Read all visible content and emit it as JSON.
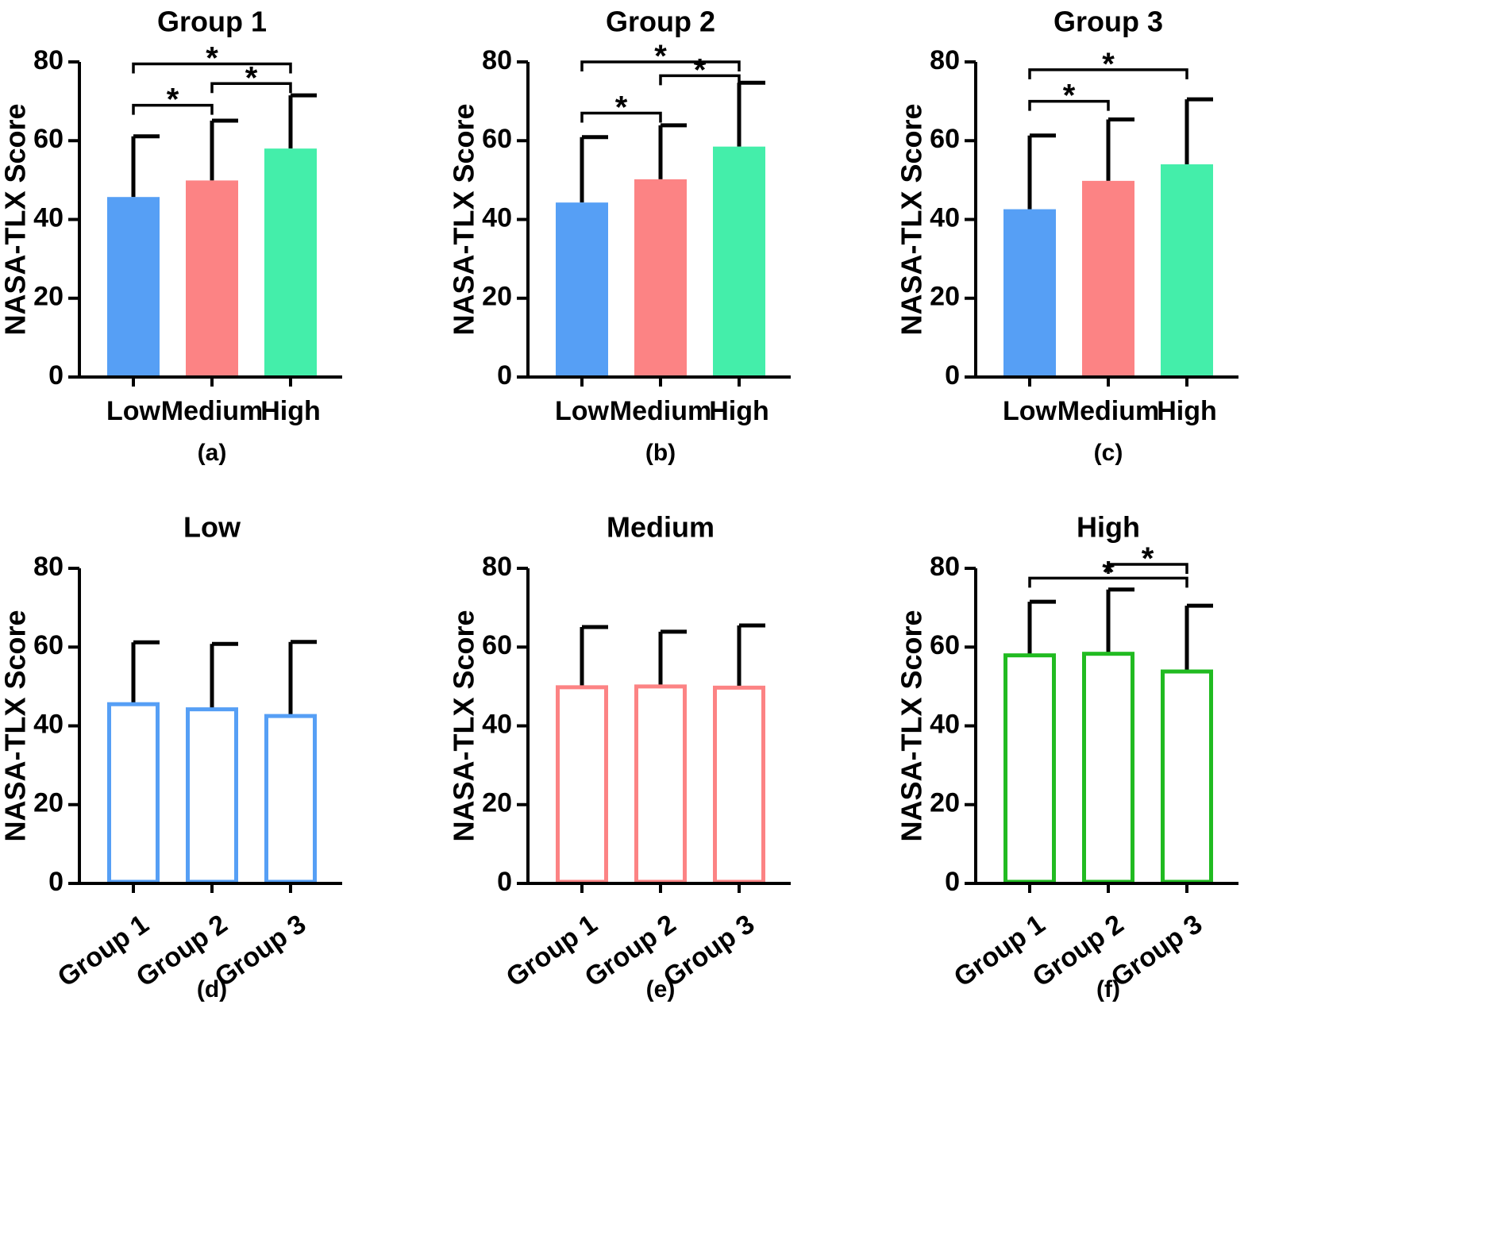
{
  "figure": {
    "colors": {
      "low": "#569ff5",
      "medium": "#fc8384",
      "high": "#44eeaa",
      "high_outline": "#21bb21",
      "axis": "#000000"
    }
  },
  "chart_data": [
    {
      "type": "bar",
      "panel_label": "(a)",
      "title": "Group 1",
      "xlabel": "",
      "ylabel": "NASA-TLX Score",
      "ylim": [
        0,
        80
      ],
      "yticks": [
        0,
        20,
        40,
        60,
        80
      ],
      "categories": [
        "Low",
        "Medium",
        "High"
      ],
      "values": [
        45.7,
        49.9,
        58.0
      ],
      "errors": [
        15.4,
        15.2,
        13.5
      ],
      "bar_style": "filled",
      "colors": [
        "#569ff5",
        "#fc8384",
        "#44eeaa"
      ],
      "tick_rotation": 0,
      "significance": [
        {
          "from": 0,
          "to": 2,
          "y": 79.5,
          "label": "*"
        },
        {
          "from": 1,
          "to": 2,
          "y": 74.5,
          "label": "*"
        },
        {
          "from": 0,
          "to": 1,
          "y": 69,
          "label": "*"
        }
      ]
    },
    {
      "type": "bar",
      "panel_label": "(b)",
      "title": "Group 2",
      "xlabel": "",
      "ylabel": "NASA-TLX Score",
      "ylim": [
        0,
        80
      ],
      "yticks": [
        0,
        20,
        40,
        60,
        80
      ],
      "categories": [
        "Low",
        "Medium",
        "High"
      ],
      "values": [
        44.3,
        50.2,
        58.5
      ],
      "errors": [
        16.6,
        13.7,
        16.2
      ],
      "bar_style": "filled",
      "colors": [
        "#569ff5",
        "#fc8384",
        "#44eeaa"
      ],
      "tick_rotation": 0,
      "significance": [
        {
          "from": 0,
          "to": 2,
          "y": 80,
          "label": "*"
        },
        {
          "from": 1,
          "to": 2,
          "y": 76.5,
          "label": "*"
        },
        {
          "from": 0,
          "to": 1,
          "y": 67,
          "label": "*"
        }
      ]
    },
    {
      "type": "bar",
      "panel_label": "(c)",
      "title": "Group 3",
      "xlabel": "",
      "ylabel": "NASA-TLX Score",
      "ylim": [
        0,
        80
      ],
      "yticks": [
        0,
        20,
        40,
        60,
        80
      ],
      "categories": [
        "Low",
        "Medium",
        "High"
      ],
      "values": [
        42.6,
        49.8,
        54.0
      ],
      "errors": [
        18.7,
        15.6,
        16.5
      ],
      "bar_style": "filled",
      "colors": [
        "#569ff5",
        "#fc8384",
        "#44eeaa"
      ],
      "tick_rotation": 0,
      "significance": [
        {
          "from": 0,
          "to": 2,
          "y": 78,
          "label": "*"
        },
        {
          "from": 0,
          "to": 1,
          "y": 70,
          "label": "*"
        }
      ]
    },
    {
      "type": "bar",
      "panel_label": "(d)",
      "title": "Low",
      "xlabel": "",
      "ylabel": "NASA-TLX Score",
      "ylim": [
        0,
        80
      ],
      "yticks": [
        0,
        20,
        40,
        60,
        80
      ],
      "categories": [
        "Group 1",
        "Group 2",
        "Group 3"
      ],
      "values": [
        45.5,
        44.2,
        42.5
      ],
      "errors": [
        15.7,
        16.6,
        18.8
      ],
      "bar_style": "outline",
      "colors": [
        "#569ff5",
        "#569ff5",
        "#569ff5"
      ],
      "tick_rotation": -35,
      "significance": []
    },
    {
      "type": "bar",
      "panel_label": "(e)",
      "title": "Medium",
      "xlabel": "",
      "ylabel": "NASA-TLX Score",
      "ylim": [
        0,
        80
      ],
      "yticks": [
        0,
        20,
        40,
        60,
        80
      ],
      "categories": [
        "Group 1",
        "Group 2",
        "Group 3"
      ],
      "values": [
        49.8,
        50.0,
        49.7
      ],
      "errors": [
        15.3,
        13.9,
        15.8
      ],
      "bar_style": "outline",
      "colors": [
        "#fc8384",
        "#fc8384",
        "#fc8384"
      ],
      "tick_rotation": -35,
      "significance": []
    },
    {
      "type": "bar",
      "panel_label": "(f)",
      "title": "High",
      "xlabel": "",
      "ylabel": "NASA-TLX Score",
      "ylim": [
        0,
        80
      ],
      "yticks": [
        0,
        20,
        40,
        60,
        80
      ],
      "categories": [
        "Group 1",
        "Group 2",
        "Group 3"
      ],
      "values": [
        57.9,
        58.3,
        53.8
      ],
      "errors": [
        13.6,
        16.3,
        16.7
      ],
      "bar_style": "outline",
      "colors": [
        "#21bb21",
        "#21bb21",
        "#21bb21"
      ],
      "tick_rotation": -35,
      "significance": [
        {
          "from": 1,
          "to": 2,
          "y": 81,
          "label": "*"
        },
        {
          "from": 0,
          "to": 2,
          "y": 77.5,
          "label": "*"
        }
      ]
    }
  ]
}
